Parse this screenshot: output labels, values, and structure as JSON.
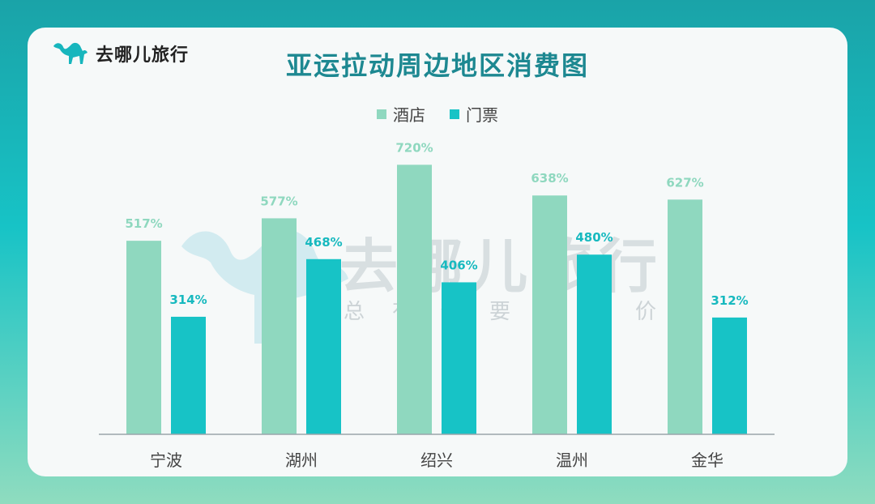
{
  "logo": {
    "text": "去哪儿旅行",
    "icon": "camel-icon"
  },
  "watermark": {
    "main": "去哪儿旅行",
    "sub": "总有你要的低价"
  },
  "colors": {
    "hotel": "#8fd8bf",
    "ticket": "#17c3c6",
    "title": "#1d8891"
  },
  "chart_data": {
    "type": "bar",
    "title": "亚运拉动周边地区消费图",
    "categories": [
      "宁波",
      "湖州",
      "绍兴",
      "温州",
      "金华"
    ],
    "series": [
      {
        "name": "酒店",
        "values": [
          517,
          577,
          720,
          638,
          627
        ],
        "labels": [
          "517%",
          "577%",
          "720%",
          "638%",
          "627%"
        ]
      },
      {
        "name": "门票",
        "values": [
          314,
          468,
          406,
          480,
          312
        ],
        "labels": [
          "314%",
          "468%",
          "406%",
          "480%",
          "312%"
        ]
      }
    ],
    "ylim": [
      0,
      1000
    ],
    "legend": "top-center",
    "grid": false
  }
}
